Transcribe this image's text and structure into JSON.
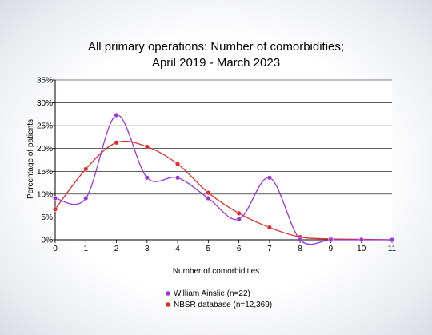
{
  "chart_data": {
    "type": "line",
    "title": [
      "All primary operations: Number of comorbidities;",
      "April 2019 - March 2023"
    ],
    "xlabel": "Number of comorbidities",
    "ylabel": "Percentage of patients",
    "x": [
      0,
      1,
      2,
      3,
      4,
      5,
      6,
      7,
      8,
      9,
      10,
      11
    ],
    "xlim": [
      0,
      11
    ],
    "ylim": [
      0,
      35
    ],
    "yticks": [
      0,
      5,
      10,
      15,
      20,
      25,
      30,
      35
    ],
    "ytick_suffix": "%",
    "grid": "horizontal",
    "legend_position": "bottom",
    "smoothed": true,
    "series": [
      {
        "name": "William Ainslie (n=22)",
        "color": "#9a36d6",
        "values": [
          9.1,
          9.1,
          27.3,
          13.6,
          13.6,
          9.1,
          4.5,
          13.6,
          0,
          0,
          0,
          0
        ]
      },
      {
        "name": "NBSR database (n=12,369)",
        "color": "#e02b2b",
        "values": [
          6.7,
          15.5,
          21.3,
          20.4,
          16.6,
          10.3,
          5.8,
          2.7,
          0.6,
          0.2,
          0.1,
          0
        ]
      }
    ]
  }
}
